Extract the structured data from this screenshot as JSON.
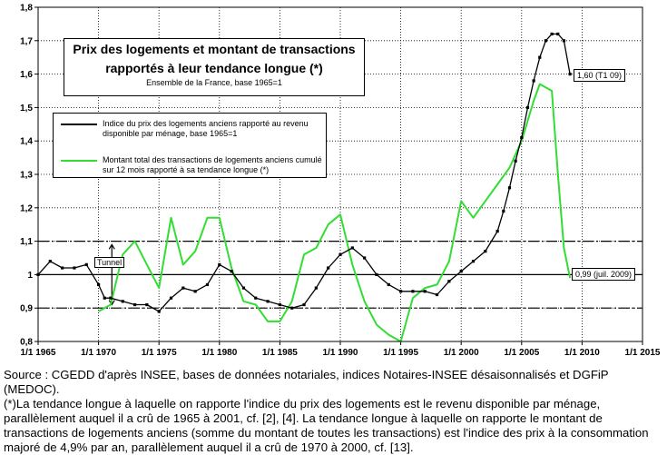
{
  "chart_data": {
    "type": "line",
    "title_line1": "Prix des logements et montant de transactions",
    "title_line2": "rapportés à leur tendance longue (*)",
    "subtitle": "Ensemble de la France, base 1965=1",
    "ylim": [
      0.8,
      1.8
    ],
    "xlim": [
      1965,
      2015
    ],
    "y_ticks": [
      "0,8",
      "0,9",
      "1",
      "1,1",
      "1,2",
      "1,3",
      "1,4",
      "1,5",
      "1,6",
      "1,7",
      "1,8"
    ],
    "x_ticks": [
      "1/1 1965",
      "1/1 1970",
      "1/1 1975",
      "1/1 1980",
      "1/1 1985",
      "1/1 1990",
      "1/1 1995",
      "1/1 2000",
      "1/1 2005",
      "1/1 2010",
      "1/1 2015"
    ],
    "tunnel_label": "Tunnel",
    "tunnel_lines": [
      0.9,
      1.1
    ],
    "reference_line": 1.0,
    "series": [
      {
        "name": "Indice du prix des logements anciens rapporté au revenu disponible par ménage, base 1965=1",
        "color": "#000000",
        "x": [
          1965,
          1966,
          1967,
          1968,
          1969,
          1970,
          1970.5,
          1971,
          1972,
          1973,
          1974,
          1975,
          1976,
          1977,
          1978,
          1979,
          1980,
          1981,
          1982,
          1983,
          1984,
          1985,
          1986,
          1987,
          1988,
          1989,
          1990,
          1991,
          1992,
          1993,
          1994,
          1995,
          1996,
          1997,
          1998,
          1999,
          2000,
          2001,
          2002,
          2003,
          2003.5,
          2004,
          2004.5,
          2005,
          2005.5,
          2006,
          2006.5,
          2007,
          2007.5,
          2008,
          2008.5,
          2009
        ],
        "y": [
          1.0,
          1.04,
          1.02,
          1.02,
          1.03,
          0.97,
          0.93,
          0.93,
          0.92,
          0.91,
          0.91,
          0.89,
          0.93,
          0.96,
          0.95,
          0.97,
          1.03,
          1.01,
          0.96,
          0.93,
          0.92,
          0.91,
          0.9,
          0.91,
          0.96,
          1.02,
          1.06,
          1.08,
          1.05,
          1.0,
          0.97,
          0.95,
          0.95,
          0.95,
          0.94,
          0.98,
          1.01,
          1.04,
          1.07,
          1.13,
          1.19,
          1.26,
          1.34,
          1.41,
          1.5,
          1.58,
          1.65,
          1.7,
          1.72,
          1.72,
          1.7,
          1.6
        ]
      },
      {
        "name": "Montant total des transactions de logements anciens cumulé sur 12 mois rapporté à sa tendance longue (*)",
        "color": "#33dd33",
        "x": [
          1970,
          1971,
          1972,
          1973,
          1974,
          1975,
          1976,
          1977,
          1978,
          1979,
          1980,
          1981,
          1982,
          1983,
          1984,
          1985,
          1986,
          1987,
          1988,
          1989,
          1990,
          1991,
          1992,
          1993,
          1994,
          1995,
          1996,
          1997,
          1998,
          1999,
          2000,
          2001,
          2002,
          2003,
          2004,
          2005,
          2006,
          2006.5,
          2007,
          2007.5,
          2008,
          2008.5,
          2009
        ],
        "y": [
          0.89,
          0.91,
          1.06,
          1.1,
          1.03,
          0.96,
          1.17,
          1.03,
          1.07,
          1.17,
          1.17,
          1.02,
          0.92,
          0.91,
          0.86,
          0.86,
          0.92,
          1.06,
          1.08,
          1.15,
          1.18,
          1.03,
          0.92,
          0.85,
          0.82,
          0.8,
          0.93,
          0.96,
          0.97,
          1.04,
          1.22,
          1.17,
          1.22,
          1.27,
          1.32,
          1.4,
          1.52,
          1.57,
          1.56,
          1.55,
          1.3,
          1.08,
          0.99
        ]
      }
    ],
    "annotations": {
      "end_black": "1,60 (T1 09)",
      "end_green": "0,99 (juil. 2009)"
    }
  },
  "source": {
    "line1": "Source : CGEDD d'après INSEE, bases de données notariales, indices Notaires-INSEE désaisonnalisés et DGFiP (MEDOC).",
    "line2": "(*)La tendance longue à laquelle on rapporte l'indice du prix des logements est le revenu disponible par ménage, parallèlement auquel il a crû de 1965 à 2001, cf. [2], [4].  La tendance longue à laquelle on rapporte le montant de transactions de logements anciens (somme du montant de toutes les transactions) est l'indice des prix à la consommation majoré de 4,9% par an, parallèlement auquel il a crû de 1970 à 2000, cf. [13]."
  }
}
